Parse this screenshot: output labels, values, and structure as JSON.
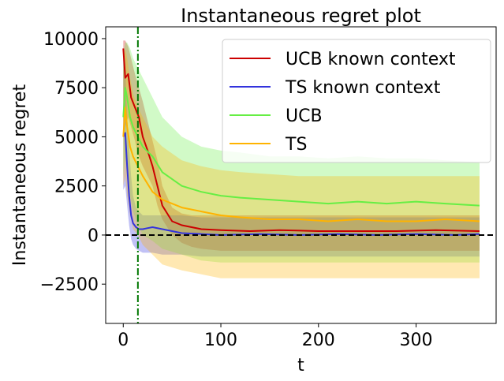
{
  "chart_data": {
    "type": "line",
    "title": "Instantaneous regret plot",
    "xlabel": "t",
    "ylabel": "Instantaneous regret",
    "xlim": [
      -18,
      382
    ],
    "ylim": [
      -4500,
      10600
    ],
    "xticks": [
      0,
      100,
      200,
      300
    ],
    "yticks": [
      -2500,
      0,
      2500,
      5000,
      7500,
      10000
    ],
    "xtick_labels": [
      "0",
      "100",
      "200",
      "300"
    ],
    "ytick_labels": [
      "−2500",
      "0",
      "2500",
      "5000",
      "7500",
      "10000"
    ],
    "grid": false,
    "legend_position": "upper-right",
    "reference_lines": [
      {
        "orientation": "horizontal",
        "value": 0,
        "color": "#000000",
        "style": "dashed"
      },
      {
        "orientation": "vertical",
        "value": 15,
        "color": "#007700",
        "style": "dash-dot"
      }
    ],
    "series": [
      {
        "name": "UCB known context",
        "color": "#cc0000",
        "x": [
          0,
          2,
          5,
          8,
          12,
          16,
          20,
          25,
          30,
          35,
          40,
          50,
          60,
          70,
          80,
          100,
          130,
          160,
          200,
          240,
          280,
          320,
          365
        ],
        "values": [
          9500,
          8000,
          8200,
          7000,
          6500,
          6000,
          5000,
          4300,
          3500,
          2500,
          1500,
          700,
          500,
          400,
          300,
          250,
          200,
          250,
          200,
          200,
          200,
          250,
          200
        ],
        "lower": [
          5000,
          5500,
          6000,
          5500,
          4800,
          4000,
          3500,
          3000,
          2500,
          1500,
          800,
          0,
          -400,
          -600,
          -700,
          -800,
          -800,
          -800,
          -800,
          -800,
          -800,
          -800,
          -800
        ],
        "upper": [
          9900,
          9900,
          9600,
          9000,
          8200,
          7500,
          6800,
          5800,
          4800,
          3800,
          2500,
          1400,
          1100,
          1000,
          1000,
          1000,
          1000,
          1000,
          1000,
          1000,
          1000,
          1000,
          1000
        ]
      },
      {
        "name": "TS known context",
        "color": "#3333dd",
        "x": [
          0,
          2,
          4,
          6,
          8,
          10,
          13,
          16,
          20,
          25,
          30,
          40,
          50,
          60,
          80,
          100,
          140,
          180,
          220,
          260,
          300,
          340,
          365
        ],
        "values": [
          5000,
          5200,
          3500,
          2000,
          1000,
          600,
          400,
          300,
          300,
          350,
          400,
          300,
          200,
          100,
          50,
          0,
          50,
          0,
          50,
          0,
          50,
          0,
          50
        ],
        "lower": [
          2300,
          2500,
          1500,
          500,
          -200,
          -500,
          -700,
          -800,
          -900,
          -900,
          -900,
          -1000,
          -1000,
          -1000,
          -1100,
          -1100,
          -1100,
          -1100,
          -1100,
          -1100,
          -1100,
          -1100,
          -1100
        ],
        "upper": [
          9000,
          8500,
          6000,
          4500,
          3000,
          2000,
          1400,
          1200,
          1000,
          1000,
          1000,
          1000,
          1000,
          1000,
          900,
          900,
          900,
          900,
          900,
          900,
          900,
          900,
          900
        ]
      },
      {
        "name": "UCB",
        "color": "#66ee44",
        "x": [
          0,
          2,
          4,
          7,
          10,
          15,
          20,
          30,
          40,
          60,
          80,
          100,
          120,
          150,
          180,
          210,
          240,
          270,
          300,
          330,
          365
        ],
        "values": [
          6000,
          7500,
          7000,
          6000,
          5500,
          5000,
          4500,
          4000,
          3200,
          2500,
          2200,
          2000,
          1900,
          1800,
          1700,
          1600,
          1700,
          1600,
          1700,
          1600,
          1500
        ],
        "lower": [
          3000,
          4000,
          3000,
          2000,
          1200,
          500,
          0,
          -300,
          -700,
          -1000,
          -1300,
          -1400,
          -1400,
          -1400,
          -1400,
          -1400,
          -1400,
          -1400,
          -1400,
          -1400,
          -1400
        ],
        "upper": [
          9200,
          9800,
          9800,
          9500,
          9000,
          8500,
          8000,
          7000,
          6000,
          5000,
          4500,
          4300,
          4200,
          4000,
          4000,
          3900,
          4000,
          3900,
          3900,
          3800,
          3700
        ]
      },
      {
        "name": "TS",
        "color": "#ffb300",
        "x": [
          0,
          2,
          4,
          7,
          10,
          15,
          20,
          30,
          40,
          60,
          80,
          100,
          120,
          150,
          180,
          210,
          240,
          270,
          300,
          330,
          365
        ],
        "values": [
          5000,
          6500,
          5500,
          4500,
          4000,
          3500,
          3000,
          2200,
          1800,
          1400,
          1200,
          1000,
          900,
          800,
          800,
          700,
          800,
          700,
          700,
          800,
          700
        ],
        "lower": [
          2500,
          3000,
          2000,
          1000,
          300,
          0,
          -500,
          -1000,
          -1500,
          -1800,
          -2000,
          -2200,
          -2200,
          -2200,
          -2200,
          -2200,
          -2200,
          -2200,
          -2200,
          -2200,
          -2200
        ],
        "upper": [
          8500,
          9500,
          9000,
          8000,
          7200,
          6500,
          6000,
          5000,
          4500,
          3800,
          3500,
          3300,
          3200,
          3100,
          3000,
          3000,
          3000,
          3000,
          3000,
          3000,
          3000
        ]
      }
    ]
  }
}
